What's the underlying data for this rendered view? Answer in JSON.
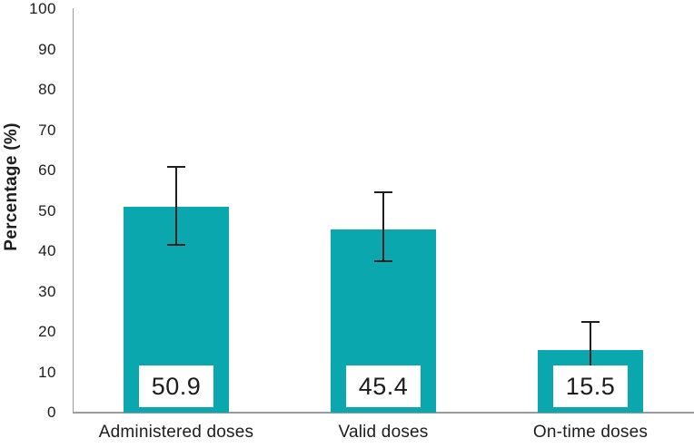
{
  "chart_data": {
    "type": "bar",
    "title": "",
    "xlabel": "",
    "ylabel": "Percentage (%)",
    "categories": [
      "Administered doses",
      "Valid doses",
      "On-time doses"
    ],
    "values": [
      50.9,
      45.4,
      15.5
    ],
    "value_labels": [
      "50.9",
      "45.4",
      "15.5"
    ],
    "error_bars": {
      "upper": [
        60.9,
        54.5,
        22.5
      ],
      "lower": [
        41.5,
        37.5,
        9.0
      ]
    },
    "ylim": [
      0,
      100
    ],
    "yticks": [
      0,
      10,
      20,
      30,
      40,
      50,
      60,
      70,
      80,
      90,
      100
    ],
    "grid": false,
    "legend": false,
    "colors": {
      "bar": "#0ba7ae",
      "error": "#1f1f1f",
      "axis": "#9a9a9a",
      "text": "#1c1c1c",
      "value_box_bg": "#ffffff"
    }
  }
}
